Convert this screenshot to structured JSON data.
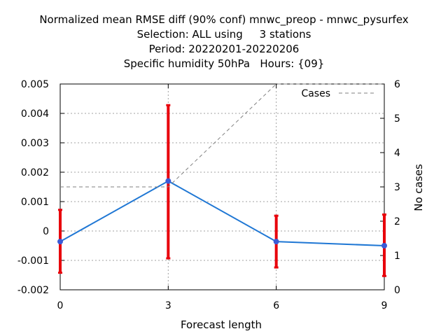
{
  "title_lines": [
    "Normalized mean RMSE diff (90% conf) mnwc_preop - mnwc_pysurfex",
    "Selection: ALL using     3 stations",
    "Period: 20220201-20220206",
    "Specific humidity 50hPa   Hours: {09}"
  ],
  "chart_data": {
    "type": "line",
    "title": "Normalized mean RMSE diff (90% conf) mnwc_preop - mnwc_pysurfex",
    "xlabel": "Forecast length",
    "ylabel": "",
    "y2label": "No cases",
    "xlim": [
      0,
      9
    ],
    "ylim": [
      -0.002,
      0.005
    ],
    "y2lim": [
      0,
      6
    ],
    "x_ticks": [
      "0",
      "3",
      "6",
      "9"
    ],
    "y_ticks": [
      "-0.002",
      "-0.001",
      "0",
      "0.001",
      "0.002",
      "0.003",
      "0.004",
      "0.005"
    ],
    "y2_ticks": [
      "0",
      "1",
      "2",
      "3",
      "4",
      "5",
      "6"
    ],
    "grid": true,
    "legend_position": "top-right",
    "series": [
      {
        "name": "",
        "axis": "left",
        "color": "#1f77d4",
        "x": [
          0,
          3,
          6,
          9
        ],
        "y": [
          -0.00036,
          0.0017,
          -0.00036,
          -0.0005
        ],
        "error_low": [
          -0.00142,
          -0.00093,
          -0.00124,
          -0.00153
        ],
        "error_high": [
          0.00072,
          0.00428,
          0.00052,
          0.00056
        ],
        "error_color": "#e8000b"
      },
      {
        "name": "Cases",
        "axis": "right",
        "color": "#808080",
        "dashed": true,
        "x": [
          0,
          3,
          6,
          9
        ],
        "y": [
          3,
          3,
          6,
          6
        ]
      }
    ]
  }
}
